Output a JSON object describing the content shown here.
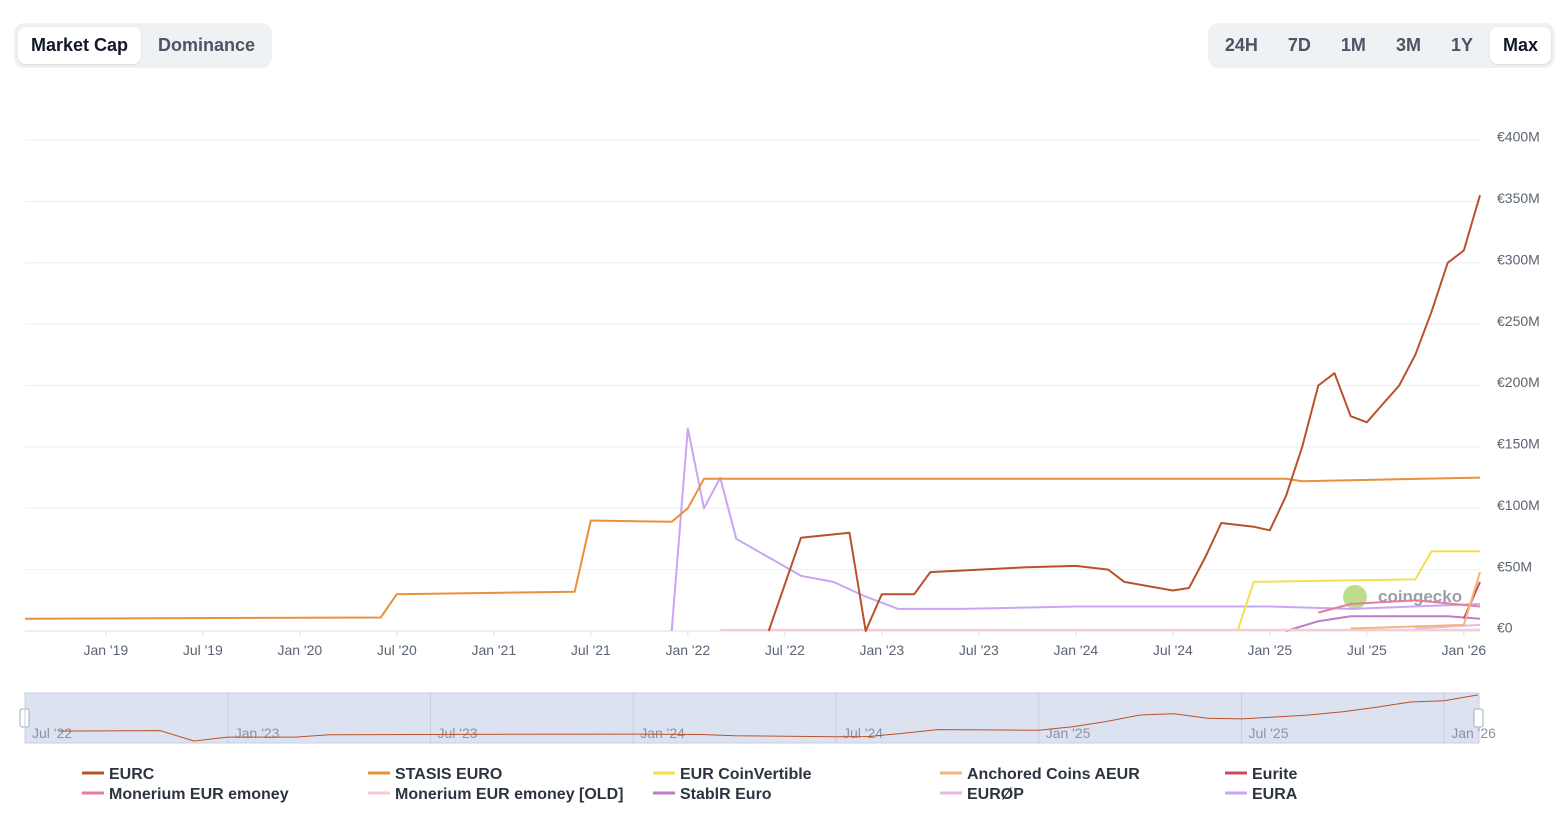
{
  "tabs": {
    "metric": [
      "Market Cap",
      "Dominance"
    ],
    "active_metric": 0,
    "range": [
      "24H",
      "7D",
      "1M",
      "3M",
      "1Y",
      "Max"
    ],
    "active_range": 5
  },
  "chart_data": {
    "type": "line",
    "watermark": "coingecko",
    "xlim": [
      "2018-08",
      "2026-02"
    ],
    "xticks": [
      {
        "value": "2019-01",
        "label": "Jan '19"
      },
      {
        "value": "2019-07",
        "label": "Jul '19"
      },
      {
        "value": "2020-01",
        "label": "Jan '20"
      },
      {
        "value": "2020-07",
        "label": "Jul '20"
      },
      {
        "value": "2021-01",
        "label": "Jan '21"
      },
      {
        "value": "2021-07",
        "label": "Jul '21"
      },
      {
        "value": "2022-01",
        "label": "Jan '22"
      },
      {
        "value": "2022-07",
        "label": "Jul '22"
      },
      {
        "value": "2023-01",
        "label": "Jan '23"
      },
      {
        "value": "2023-07",
        "label": "Jul '23"
      },
      {
        "value": "2024-01",
        "label": "Jan '24"
      },
      {
        "value": "2024-07",
        "label": "Jul '24"
      },
      {
        "value": "2025-01",
        "label": "Jan '25"
      },
      {
        "value": "2025-07",
        "label": "Jul '25"
      },
      {
        "value": "2026-01",
        "label": "Jan '26"
      }
    ],
    "ylim": [
      0,
      400000000
    ],
    "yticks": [
      {
        "value": 0,
        "label": "€0"
      },
      {
        "value": 50000000,
        "label": "€50M"
      },
      {
        "value": 100000000,
        "label": "€100M"
      },
      {
        "value": 150000000,
        "label": "€150M"
      },
      {
        "value": 200000000,
        "label": "€200M"
      },
      {
        "value": 250000000,
        "label": "€250M"
      },
      {
        "value": 300000000,
        "label": "€300M"
      },
      {
        "value": 350000000,
        "label": "€350M"
      },
      {
        "value": 400000000,
        "label": "€400M"
      }
    ],
    "grid": true,
    "navigator": {
      "xlim": [
        "2022-07",
        "2026-02"
      ],
      "xticks": [
        {
          "value": "2022-07",
          "label": "Jul '22"
        },
        {
          "value": "2023-01",
          "label": "Jan '23"
        },
        {
          "value": "2023-07",
          "label": "Jul '23"
        },
        {
          "value": "2024-01",
          "label": "Jan '24"
        },
        {
          "value": "2024-07",
          "label": "Jul '24"
        },
        {
          "value": "2025-01",
          "label": "Jan '25"
        },
        {
          "value": "2025-07",
          "label": "Jul '25"
        },
        {
          "value": "2026-01",
          "label": "Jan '26"
        }
      ]
    },
    "series": [
      {
        "name": "EURC",
        "color": "#b9522a",
        "x": [
          "2022-06",
          "2022-08",
          "2022-11",
          "2022-12",
          "2023-01",
          "2023-03",
          "2023-04",
          "2023-10",
          "2024-01",
          "2024-03",
          "2024-04",
          "2024-07",
          "2024-08",
          "2024-09",
          "2024-10",
          "2024-12",
          "2025-01",
          "2025-02",
          "2025-03",
          "2025-04",
          "2025-05",
          "2025-06",
          "2025-07",
          "2025-08",
          "2025-09",
          "2025-10",
          "2025-11",
          "2025-12",
          "2026-01",
          "2026-02"
        ],
        "values": [
          0,
          76000000,
          80000000,
          0,
          30000000,
          30000000,
          48000000,
          52000000,
          53000000,
          50000000,
          40000000,
          33000000,
          35000000,
          60000000,
          88000000,
          85000000,
          82000000,
          110000000,
          150000000,
          200000000,
          210000000,
          175000000,
          170000000,
          185000000,
          200000000,
          225000000,
          260000000,
          300000000,
          310000000,
          355000000
        ]
      },
      {
        "name": "STASIS EURO",
        "color": "#e8903a",
        "x": [
          "2018-08",
          "2020-06",
          "2020-07",
          "2021-06",
          "2021-07",
          "2021-12",
          "2022-01",
          "2022-02",
          "2025-02",
          "2025-03",
          "2026-02"
        ],
        "values": [
          10000000,
          11000000,
          30000000,
          32000000,
          90000000,
          89000000,
          100000000,
          124000000,
          124000000,
          122000000,
          125000000
        ]
      },
      {
        "name": "EUR CoinVertible",
        "color": "#f2e04f",
        "x": [
          "2024-11",
          "2024-12",
          "2025-10",
          "2025-11",
          "2026-02"
        ],
        "values": [
          0,
          40000000,
          42000000,
          65000000,
          65000000
        ]
      },
      {
        "name": "Anchored Coins AEUR",
        "color": "#f4b57a",
        "x": [
          "2025-06",
          "2026-01",
          "2026-02"
        ],
        "values": [
          2000000,
          5000000,
          48000000
        ]
      },
      {
        "name": "Eurite",
        "color": "#d0475f",
        "x": [
          "2026-01",
          "2026-02"
        ],
        "values": [
          10000000,
          40000000
        ]
      },
      {
        "name": "Monerium EUR emoney",
        "color": "#e67da0",
        "x": [
          "2025-04",
          "2025-06",
          "2025-10",
          "2026-02"
        ],
        "values": [
          15000000,
          22000000,
          25000000,
          20000000
        ]
      },
      {
        "name": "Monerium EUR emoney [OLD]",
        "color": "#f9c9d6",
        "x": [
          "2022-03",
          "2026-02"
        ],
        "values": [
          1000000,
          1000000
        ]
      },
      {
        "name": "StablR Euro",
        "color": "#c07cc8",
        "x": [
          "2025-02",
          "2025-04",
          "2025-06",
          "2025-12",
          "2026-02"
        ],
        "values": [
          0,
          8000000,
          12000000,
          12000000,
          10000000
        ]
      },
      {
        "name": "EURØP",
        "color": "#e5b8ea",
        "x": [
          "2025-10",
          "2026-02"
        ],
        "values": [
          2000000,
          5000000
        ]
      },
      {
        "name": "EURA",
        "color": "#c9a6f2",
        "x": [
          "2021-12",
          "2022-01",
          "2022-02",
          "2022-03",
          "2022-04",
          "2022-06",
          "2022-08",
          "2022-10",
          "2022-12",
          "2023-02",
          "2023-06",
          "2024-01",
          "2024-06",
          "2025-01",
          "2025-06",
          "2026-02"
        ],
        "values": [
          0,
          165000000,
          100000000,
          125000000,
          75000000,
          60000000,
          45000000,
          40000000,
          28000000,
          18000000,
          18000000,
          20000000,
          20000000,
          20000000,
          18000000,
          22000000
        ]
      }
    ]
  }
}
